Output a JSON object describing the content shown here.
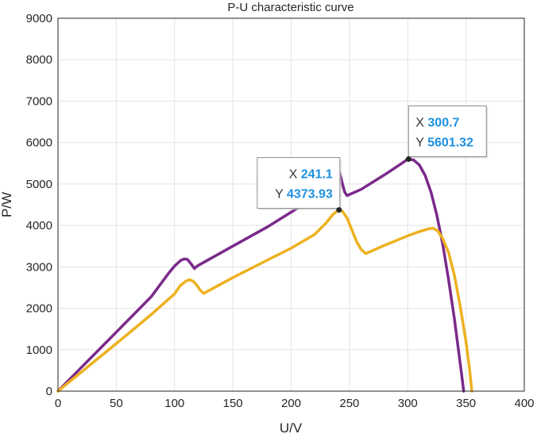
{
  "chart_data": {
    "type": "line",
    "title": "P-U characteristic curve",
    "xlabel": "U/V",
    "ylabel": "P/W",
    "xlim": [
      0,
      400
    ],
    "ylim": [
      0,
      9000
    ],
    "xticks": [
      0,
      50,
      100,
      150,
      200,
      250,
      300,
      350,
      400
    ],
    "yticks": [
      0,
      1000,
      2000,
      3000,
      4000,
      5000,
      6000,
      7000,
      8000,
      9000
    ],
    "grid": true,
    "series": [
      {
        "color": "#7B2A8B",
        "points": [
          [
            0,
            0
          ],
          [
            20,
            570
          ],
          [
            40,
            1140
          ],
          [
            60,
            1710
          ],
          [
            80,
            2280
          ],
          [
            95,
            2850
          ],
          [
            100,
            3020
          ],
          [
            105,
            3150
          ],
          [
            108,
            3190
          ],
          [
            111,
            3180
          ],
          [
            114,
            3080
          ],
          [
            117,
            2960
          ],
          [
            120,
            3030
          ],
          [
            150,
            3500
          ],
          [
            180,
            3970
          ],
          [
            200,
            4320
          ],
          [
            220,
            4680
          ],
          [
            230,
            4900
          ],
          [
            235,
            5080
          ],
          [
            238,
            5280
          ],
          [
            240,
            5330
          ],
          [
            242,
            5250
          ],
          [
            244,
            5000
          ],
          [
            246,
            4800
          ],
          [
            248,
            4720
          ],
          [
            260,
            4870
          ],
          [
            280,
            5220
          ],
          [
            295,
            5500
          ],
          [
            300,
            5601
          ],
          [
            305,
            5580
          ],
          [
            310,
            5460
          ],
          [
            315,
            5200
          ],
          [
            320,
            4800
          ],
          [
            325,
            4250
          ],
          [
            330,
            3550
          ],
          [
            335,
            2700
          ],
          [
            340,
            1750
          ],
          [
            343,
            1100
          ],
          [
            346,
            450
          ],
          [
            348,
            0
          ]
        ]
      },
      {
        "color": "#EDB120",
        "points": [
          [
            0,
            0
          ],
          [
            20,
            460
          ],
          [
            40,
            920
          ],
          [
            60,
            1380
          ],
          [
            80,
            1850
          ],
          [
            100,
            2350
          ],
          [
            105,
            2550
          ],
          [
            110,
            2660
          ],
          [
            113,
            2690
          ],
          [
            116,
            2650
          ],
          [
            119,
            2560
          ],
          [
            122,
            2440
          ],
          [
            125,
            2360
          ],
          [
            150,
            2740
          ],
          [
            180,
            3170
          ],
          [
            200,
            3450
          ],
          [
            220,
            3780
          ],
          [
            230,
            4060
          ],
          [
            236,
            4270
          ],
          [
            241.1,
            4373.93
          ],
          [
            244,
            4340
          ],
          [
            248,
            4180
          ],
          [
            252,
            3900
          ],
          [
            256,
            3620
          ],
          [
            260,
            3420
          ],
          [
            264,
            3320
          ],
          [
            280,
            3520
          ],
          [
            300,
            3750
          ],
          [
            310,
            3850
          ],
          [
            318,
            3920
          ],
          [
            322,
            3930
          ],
          [
            326,
            3860
          ],
          [
            330,
            3680
          ],
          [
            335,
            3350
          ],
          [
            340,
            2800
          ],
          [
            345,
            2050
          ],
          [
            350,
            1200
          ],
          [
            353,
            550
          ],
          [
            355,
            0
          ]
        ]
      }
    ],
    "datatips": [
      {
        "x_label": "X",
        "x_value": "241.1",
        "y_label": "Y",
        "y_value": "4373.93",
        "x": 241.1,
        "y": 4373.93
      },
      {
        "x_label": "X",
        "x_value": "300.7",
        "y_label": "Y",
        "y_value": "5601.32",
        "x": 300.7,
        "y": 5601.32
      }
    ],
    "datatip_value_color": "#1E90E0"
  }
}
